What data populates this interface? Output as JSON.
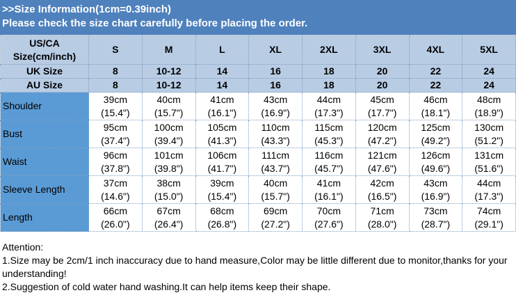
{
  "header": {
    "title": ">>Size Information(1cm=0.39inch)",
    "subtitle": "Please check the size chart carefully before placing the order."
  },
  "colors": {
    "title_bg": "#4f81bd",
    "header_bg": "#b8cce4",
    "label_bg": "#5b9bd5"
  },
  "table": {
    "header_rows": [
      {
        "label": "US/CA Size(cm/inch)",
        "values": [
          "S",
          "M",
          "L",
          "XL",
          "2XL",
          "3XL",
          "4XL",
          "5XL"
        ]
      },
      {
        "label": "UK Size",
        "values": [
          "8",
          "10-12",
          "14",
          "16",
          "18",
          "20",
          "22",
          "24"
        ]
      },
      {
        "label": "AU Size",
        "values": [
          "8",
          "10-12",
          "14",
          "16",
          "18",
          "20",
          "22",
          "24"
        ]
      }
    ],
    "rows": [
      {
        "label": "Shoulder",
        "cm": [
          "39cm",
          "40cm",
          "41cm",
          "43cm",
          "44cm",
          "45cm",
          "46cm",
          "48cm"
        ],
        "inch": [
          "(15.4\")",
          "(15.7\")",
          "(16.1\")",
          "(16.9\")",
          "(17.3\")",
          "(17.7\")",
          "(18.1\")",
          "(18.9\")"
        ]
      },
      {
        "label": "Bust",
        "cm": [
          "95cm",
          "100cm",
          "105cm",
          "110cm",
          "115cm",
          "120cm",
          "125cm",
          "130cm"
        ],
        "inch": [
          "(37.4\")",
          "(39.4\")",
          "(41.3\")",
          "(43.3\")",
          "(45.3\")",
          "(47.2\")",
          "(49.2\")",
          "(51.2\")"
        ]
      },
      {
        "label": "Waist",
        "cm": [
          "96cm",
          "101cm",
          "106cm",
          "111cm",
          "116cm",
          "121cm",
          "126cm",
          "131cm"
        ],
        "inch": [
          "(37.8\")",
          "(39.8\")",
          "(41.7\")",
          "(43.7\")",
          "(45.7\")",
          "(47.6\")",
          "(49.6\")",
          "(51.6\")"
        ]
      },
      {
        "label": "Sleeve Length",
        "cm": [
          "37cm",
          "38cm",
          "39cm",
          "40cm",
          "41cm",
          "42cm",
          "43cm",
          "44cm"
        ],
        "inch": [
          "(14.6\")",
          "(15.0\")",
          "(15.4\")",
          "(15.7\")",
          "(16.1\")",
          "(16.5\")",
          "(16.9\")",
          "(17.3\")"
        ]
      },
      {
        "label": "Length",
        "cm": [
          "66cm",
          "67cm",
          "68cm",
          "69cm",
          "70cm",
          "71cm",
          "73cm",
          "74cm"
        ],
        "inch": [
          "(26.0\")",
          "(26.4\")",
          "(26.8\")",
          "(27.2\")",
          "(27.6\")",
          "(28.0\")",
          "(28.7\")",
          "(29.1\")"
        ]
      }
    ]
  },
  "notes": {
    "heading": "Attention:",
    "items": [
      "1.Size may be 2cm/1 inch inaccuracy due to hand measure,Color may be little different due to monitor,thanks for your understanding!",
      "2.Suggestion of cold water hand washing.It can help items keep their shape."
    ]
  }
}
